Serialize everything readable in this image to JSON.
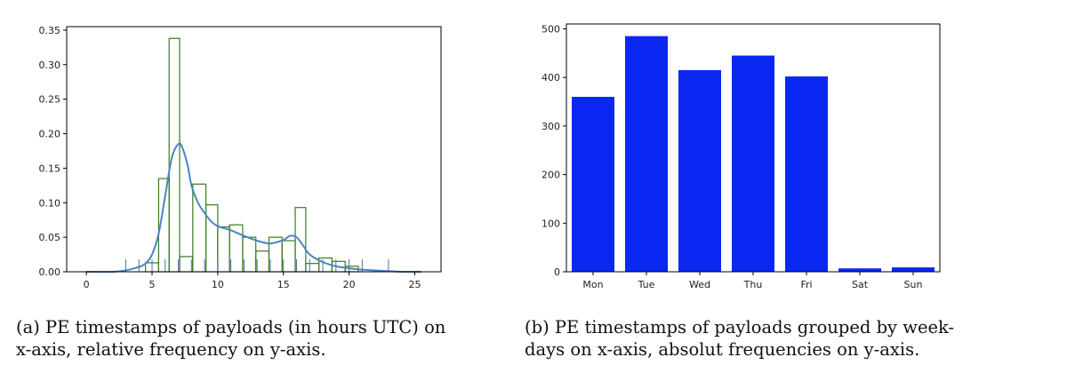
{
  "chart_data": [
    {
      "type": "histogram",
      "title": "",
      "xlabel": "",
      "ylabel": "",
      "xlim": [
        -1.5,
        27
      ],
      "ylim": [
        0,
        0.355
      ],
      "xticks": [
        0,
        5,
        10,
        15,
        20,
        25
      ],
      "yticks": [
        "0.00",
        "0.05",
        "0.10",
        "0.15",
        "0.20",
        "0.25",
        "0.30",
        "0.35"
      ],
      "bins": [
        {
          "x0": 3.0,
          "x1": 4.5,
          "value": 0.0
        },
        {
          "x0": 4.5,
          "x1": 5.5,
          "value": 0.013
        },
        {
          "x0": 5.5,
          "x1": 6.3,
          "value": 0.135
        },
        {
          "x0": 6.3,
          "x1": 7.1,
          "value": 0.338
        },
        {
          "x0": 7.1,
          "x1": 8.1,
          "value": 0.022
        },
        {
          "x0": 8.1,
          "x1": 9.1,
          "value": 0.127
        },
        {
          "x0": 9.1,
          "x1": 10.0,
          "value": 0.097
        },
        {
          "x0": 10.0,
          "x1": 10.9,
          "value": 0.065
        },
        {
          "x0": 10.9,
          "x1": 11.9,
          "value": 0.068
        },
        {
          "x0": 11.9,
          "x1": 12.9,
          "value": 0.05
        },
        {
          "x0": 12.9,
          "x1": 13.9,
          "value": 0.03
        },
        {
          "x0": 13.9,
          "x1": 14.9,
          "value": 0.05
        },
        {
          "x0": 14.9,
          "x1": 15.9,
          "value": 0.045
        },
        {
          "x0": 15.9,
          "x1": 16.7,
          "value": 0.093
        },
        {
          "x0": 16.7,
          "x1": 17.7,
          "value": 0.012
        },
        {
          "x0": 17.7,
          "x1": 18.7,
          "value": 0.02
        },
        {
          "x0": 18.7,
          "x1": 19.7,
          "value": 0.015
        },
        {
          "x0": 19.7,
          "x1": 20.7,
          "value": 0.008
        },
        {
          "x0": 20.7,
          "x1": 21.5,
          "value": 0.0
        }
      ],
      "kde": {
        "x": [
          0,
          2,
          3,
          4,
          4.5,
          5,
          5.5,
          6,
          6.5,
          7,
          7.3,
          7.7,
          8,
          8.5,
          9,
          9.5,
          10,
          11,
          12,
          13,
          14,
          15,
          15.5,
          16,
          16.5,
          17,
          18,
          19,
          20,
          21,
          22,
          23,
          24,
          25.5
        ],
        "y": [
          0.0,
          0.0,
          0.002,
          0.007,
          0.012,
          0.025,
          0.055,
          0.11,
          0.165,
          0.185,
          0.18,
          0.155,
          0.125,
          0.1,
          0.085,
          0.073,
          0.066,
          0.06,
          0.052,
          0.045,
          0.041,
          0.046,
          0.052,
          0.05,
          0.038,
          0.025,
          0.014,
          0.008,
          0.005,
          0.003,
          0.002,
          0.001,
          0.0,
          0.0
        ]
      },
      "rug": [
        3,
        4,
        5,
        6,
        7,
        8,
        9,
        10,
        11,
        12,
        13,
        14,
        15,
        16,
        17,
        18,
        19,
        20,
        21,
        23
      ],
      "colors": {
        "hist": "#3a7a1f",
        "kde": "#4a86c0",
        "rug": "#4a76a8"
      }
    },
    {
      "type": "bar",
      "title": "",
      "xlabel": "",
      "ylabel": "",
      "categories": [
        "Mon",
        "Tue",
        "Wed",
        "Thu",
        "Fri",
        "Sat",
        "Sun"
      ],
      "values": [
        360,
        485,
        415,
        445,
        402,
        7,
        9
      ],
      "ylim": [
        0,
        510
      ],
      "yticks": [
        "0",
        "100",
        "200",
        "300",
        "400",
        "500"
      ],
      "colors": {
        "bar": "#0b28f2"
      }
    }
  ],
  "captions": {
    "a_line1": "(a) PE timestamps of payloads (in hours UTC) on",
    "a_line2": "x-axis, relative frequency on y-axis.",
    "b_line1": "(b) PE timestamps of payloads grouped by week-",
    "b_line2": "days on x-axis, absolut frequencies on y-axis."
  }
}
